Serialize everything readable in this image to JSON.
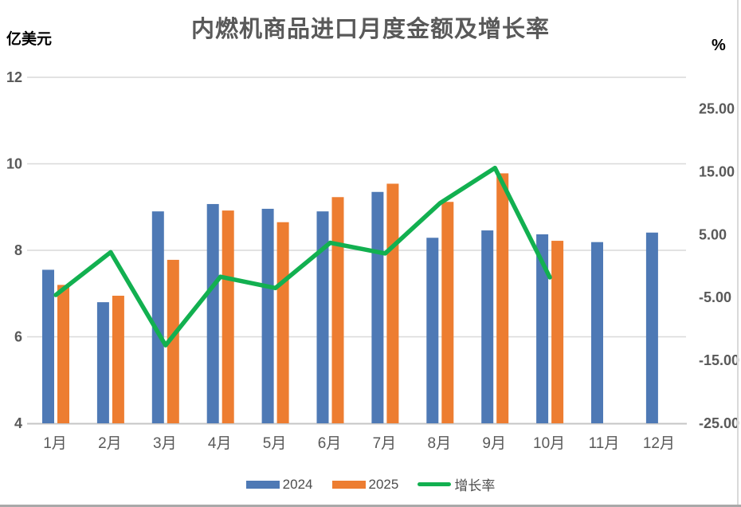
{
  "title": "内燃机商品进口月度金额及增长率",
  "legend": {
    "items": [
      {
        "label": "2024",
        "type": "bar",
        "color": "#4E79B5"
      },
      {
        "label": "2025",
        "type": "bar",
        "color": "#ED7D31"
      },
      {
        "label": "增长率",
        "type": "line",
        "color": "#12B050"
      }
    ]
  },
  "colors": {
    "bar_2024": "#4E79B5",
    "bar_2025": "#ED7D31",
    "growth_line": "#12B050",
    "gridline": "#D9D9D9",
    "axis_line": "#C6C6C6",
    "tick_text": "#595959",
    "month_text": "#595959",
    "title_text": "#595959"
  },
  "chart_data": {
    "type": "bar+line",
    "title": "内燃机商品进口月度金额及增长率",
    "categories": [
      "1月",
      "2月",
      "3月",
      "4月",
      "5月",
      "6月",
      "7月",
      "8月",
      "9月",
      "10月",
      "11月",
      "12月"
    ],
    "series": [
      {
        "name": "2024",
        "type": "bar",
        "axis": "left",
        "values": [
          7.55,
          6.8,
          8.9,
          9.07,
          8.96,
          8.9,
          9.35,
          8.29,
          8.46,
          8.37,
          8.19,
          8.41
        ]
      },
      {
        "name": "2025",
        "type": "bar",
        "axis": "left",
        "values": [
          7.2,
          6.95,
          7.78,
          8.92,
          8.65,
          9.23,
          9.54,
          9.12,
          9.78,
          8.22,
          null,
          null
        ]
      },
      {
        "name": "增长率",
        "type": "line",
        "axis": "right",
        "values": [
          -4.6,
          2.2,
          -12.6,
          -1.7,
          -3.5,
          3.7,
          2.0,
          10.0,
          15.6,
          -1.8,
          null,
          null
        ]
      }
    ],
    "left_axis": {
      "label": "亿美元",
      "min": 4,
      "max": 12,
      "ticks": [
        12,
        10,
        8,
        6,
        4
      ]
    },
    "right_axis": {
      "label": "%",
      "min": -25,
      "max": 30,
      "ticks": [
        {
          "value": 25,
          "text": "25.00"
        },
        {
          "value": 15,
          "text": "15.00"
        },
        {
          "value": 5,
          "text": "5.00"
        },
        {
          "value": -5,
          "text": "-5.00"
        },
        {
          "value": -15,
          "text": "-15.00"
        },
        {
          "value": -25,
          "text": "-25.00"
        }
      ]
    },
    "grid": true,
    "legend_position": "bottom"
  }
}
